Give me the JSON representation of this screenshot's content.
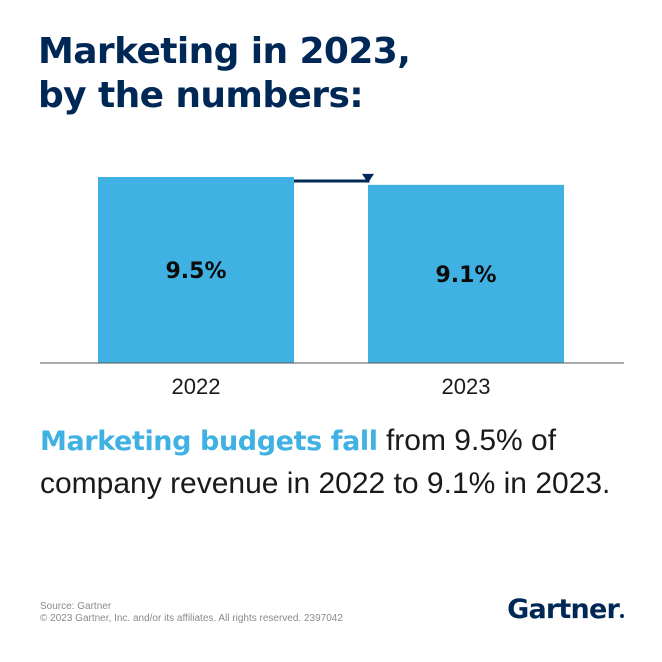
{
  "headline": {
    "line1": "Marketing in 2023,",
    "line2": "by the numbers:"
  },
  "chart_data": {
    "type": "bar",
    "categories": [
      "2022",
      "2023"
    ],
    "values": [
      9.5,
      9.1
    ],
    "value_labels": [
      "9.5%",
      "9.1%"
    ],
    "ylim": [
      0,
      9.5
    ],
    "grid": false,
    "bar_color": "#3fb1e3",
    "arrow_color": "#002856",
    "axis_color": "#555555"
  },
  "summary": {
    "highlight": "Marketing budgets fall",
    "rest": " from 9.5% of company revenue in 2022 to 9.1% in 2023."
  },
  "footer": {
    "source": "Source: Gartner",
    "copyright": "© 2023 Gartner, Inc. and/or its affiliates. All rights reserved. 2397042"
  },
  "logo": {
    "text": "Gartner"
  },
  "colors": {
    "navy": "#002856",
    "accent": "#3fb1e3"
  }
}
